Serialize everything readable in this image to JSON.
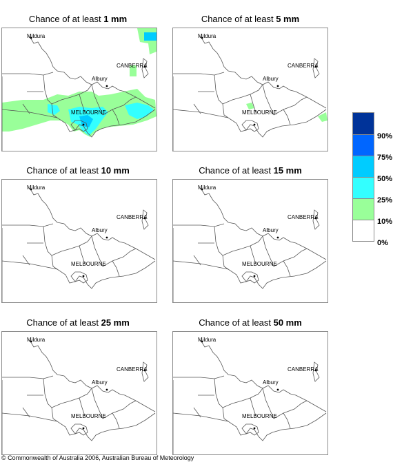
{
  "panels": [
    {
      "prefix": "Chance of at least ",
      "amount": "1 mm",
      "rain": "heavy"
    },
    {
      "prefix": "Chance of at least ",
      "amount": "5 mm",
      "rain": "light"
    },
    {
      "prefix": "Chance of at least ",
      "amount": "10 mm",
      "rain": "none"
    },
    {
      "prefix": "Chance of at least ",
      "amount": "15 mm",
      "rain": "none"
    },
    {
      "prefix": "Chance of at least ",
      "amount": "25 mm",
      "rain": "none"
    },
    {
      "prefix": "Chance of at least ",
      "amount": "50 mm",
      "rain": "none"
    }
  ],
  "places": {
    "mildura": "Mildura",
    "canberra": "CANBERRA",
    "albury": "Albury",
    "melbourne": "MELBOURNE"
  },
  "legend": {
    "labels": [
      "90%",
      "75%",
      "50%",
      "25%",
      "10%",
      "0%"
    ],
    "colors": [
      "#003399",
      "#0066ff",
      "#00ccff",
      "#33ffff",
      "#99ff99",
      "#ffffff"
    ]
  },
  "colors": {
    "level_10": "#99ff99",
    "level_25": "#33ffff",
    "level_50": "#00ccff"
  },
  "copyright": "© Commonwealth of Australia 2006, Australian Bureau of Meteorology"
}
